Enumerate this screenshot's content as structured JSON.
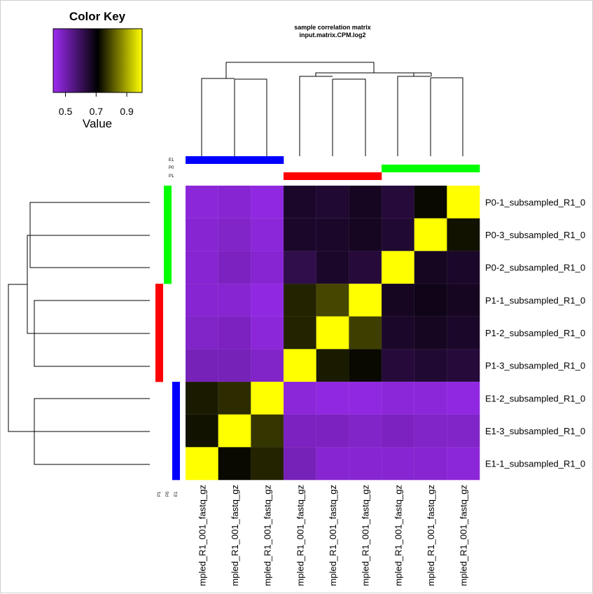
{
  "chart_data": {
    "type": "heatmap",
    "title": "sample correlation matrix",
    "subtitle": "input.matrix.CPM.log2",
    "color_key": {
      "title": "Color Key",
      "xlabel": "Value",
      "ticks": [
        "0.5",
        "0.7",
        "0.9"
      ],
      "range": [
        0.42,
        1.0
      ],
      "colors": [
        "#9c2bf2",
        "#000000",
        "#ffff00"
      ]
    },
    "row_labels": [
      "P0-1_subsampled_R1_0",
      "P0-3_subsampled_R1_0",
      "P0-2_subsampled_R1_0",
      "P1-1_subsampled_R1_0",
      "P1-2_subsampled_R1_0",
      "P1-3_subsampled_R1_0",
      "E1-2_subsampled_R1_0",
      "E1-3_subsampled_R1_0",
      "E1-1_subsampled_R1_0"
    ],
    "col_labels": [
      "mpled_R1_001_fastq_gz",
      "mpled_R1_001_fastq_gz",
      "mpled_R1_001_fastq_gz",
      "mpled_R1_001_fastq_gz",
      "mpled_R1_001_fastq_gz",
      "mpled_R1_001_fastq_gz",
      "mpled_R1_001_fastq_gz",
      "mpled_R1_001_fastq_gz",
      "mpled_R1_001_fastq_gz"
    ],
    "values": [
      [
        0.45,
        0.46,
        0.44,
        0.66,
        0.65,
        0.67,
        0.64,
        0.72,
        1.0
      ],
      [
        0.46,
        0.47,
        0.45,
        0.66,
        0.66,
        0.67,
        0.65,
        1.0,
        0.73
      ],
      [
        0.46,
        0.48,
        0.46,
        0.62,
        0.66,
        0.64,
        1.0,
        0.67,
        0.66
      ],
      [
        0.46,
        0.46,
        0.44,
        0.75,
        0.79,
        1.0,
        0.67,
        0.68,
        0.67
      ],
      [
        0.47,
        0.48,
        0.45,
        0.75,
        1.0,
        0.78,
        0.66,
        0.67,
        0.66
      ],
      [
        0.49,
        0.49,
        0.47,
        1.0,
        0.74,
        0.72,
        0.64,
        0.65,
        0.64
      ],
      [
        0.74,
        0.76,
        1.0,
        0.45,
        0.44,
        0.44,
        0.45,
        0.45,
        0.44
      ],
      [
        0.73,
        1.0,
        0.77,
        0.48,
        0.48,
        0.47,
        0.48,
        0.47,
        0.47
      ],
      [
        1.0,
        0.72,
        0.75,
        0.49,
        0.46,
        0.46,
        0.46,
        0.46,
        0.45
      ]
    ],
    "annotation_legend": [
      "E1",
      "P0",
      "P1"
    ],
    "annotation_colors": {
      "E1": "#0000ff",
      "P0": "#00ff00",
      "P1": "#ff0000"
    },
    "row_groups": [
      "P0",
      "P0",
      "P0",
      "P1",
      "P1",
      "P1",
      "E1",
      "E1",
      "E1"
    ],
    "col_groups": [
      "E1",
      "E1",
      "E1",
      "P1",
      "P1",
      "P1",
      "P0",
      "P0",
      "P0"
    ],
    "dendrogram": true,
    "grid": false
  }
}
